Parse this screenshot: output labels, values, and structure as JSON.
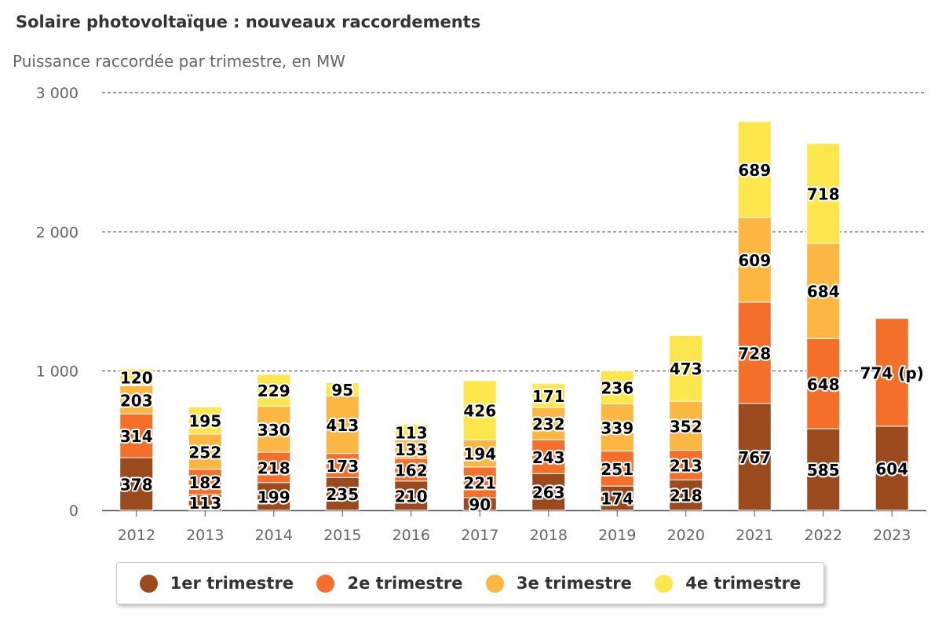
{
  "title": "Solaire photovoltaïque : nouveaux raccordements",
  "subtitle": "Puissance raccordée par trimestre, en MW",
  "colors": {
    "q1": "#9B4A1E",
    "q2": "#F4702A",
    "q3": "#FBB741",
    "q4": "#FDE74C",
    "grid": "#333333",
    "axis_text": "#666666"
  },
  "legend": [
    {
      "label": "1er trimestre",
      "color": "#9B4A1E"
    },
    {
      "label": "2e trimestre",
      "color": "#F4702A"
    },
    {
      "label": "3e trimestre",
      "color": "#FBB741"
    },
    {
      "label": "4e trimestre",
      "color": "#FDE74C"
    }
  ],
  "chart_data": {
    "type": "bar",
    "stacked": true,
    "title": "Solaire photovoltaïque : nouveaux raccordements",
    "subtitle": "Puissance raccordée par trimestre, en MW",
    "xlabel": "",
    "ylabel": "",
    "ylim": [
      0,
      3000
    ],
    "yticks": [
      0,
      1000,
      2000,
      3000
    ],
    "ytick_labels": [
      "0",
      "1 000",
      "2 000",
      "3 000"
    ],
    "grid": true,
    "legend_position": "bottom",
    "categories": [
      "2012",
      "2013",
      "2014",
      "2015",
      "2016",
      "2017",
      "2018",
      "2019",
      "2020",
      "2021",
      "2022",
      "2023"
    ],
    "series": [
      {
        "name": "1er trimestre",
        "values": [
          378,
          113,
          199,
          235,
          210,
          90,
          263,
          174,
          218,
          767,
          585,
          604
        ],
        "labels": [
          "378",
          "113",
          "199",
          "235",
          "210",
          "90",
          "263",
          "174",
          "218",
          "767",
          "585",
          "604"
        ]
      },
      {
        "name": "2e trimestre",
        "values": [
          314,
          182,
          218,
          173,
          162,
          221,
          243,
          251,
          213,
          728,
          648,
          774
        ],
        "labels": [
          "314",
          "182",
          "218",
          "173",
          "162",
          "221",
          "243",
          "251",
          "213",
          "728",
          "648",
          "774 (p)"
        ]
      },
      {
        "name": "3e trimestre",
        "values": [
          203,
          252,
          330,
          413,
          133,
          194,
          232,
          339,
          352,
          609,
          684,
          null
        ],
        "labels": [
          "203",
          "252",
          "330",
          "413",
          "133",
          "194",
          "232",
          "339",
          "352",
          "609",
          "684",
          ""
        ]
      },
      {
        "name": "4e trimestre",
        "values": [
          120,
          195,
          229,
          95,
          113,
          426,
          171,
          236,
          473,
          689,
          718,
          null
        ],
        "labels": [
          "120",
          "195",
          "229",
          "95",
          "113",
          "426",
          "171",
          "236",
          "473",
          "689",
          "718",
          ""
        ]
      }
    ]
  }
}
